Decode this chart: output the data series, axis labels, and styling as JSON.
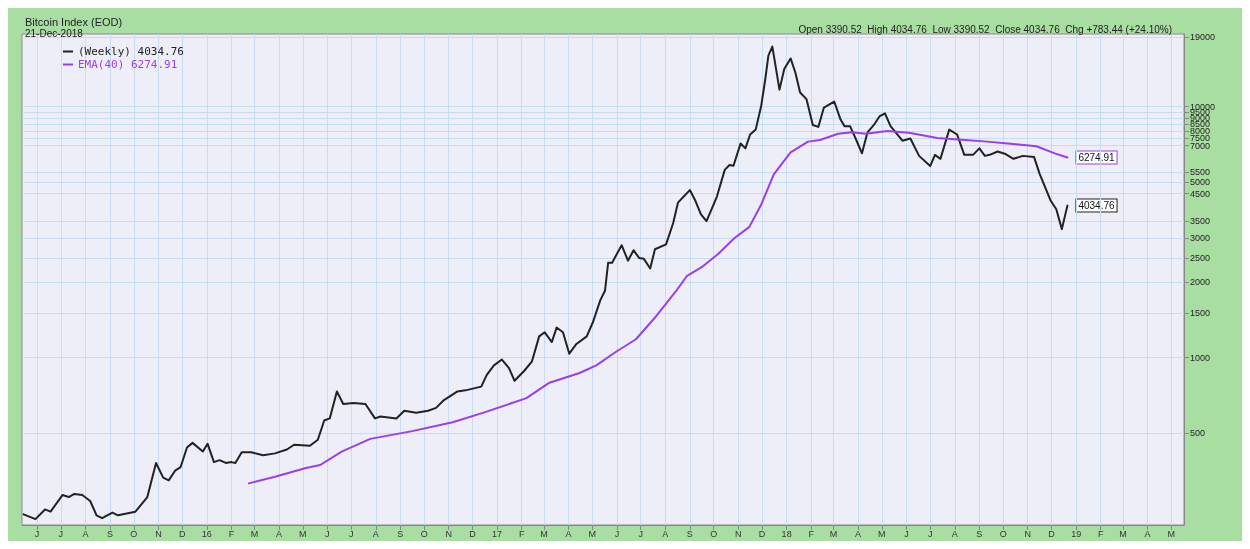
{
  "chart_data": {
    "type": "line",
    "title": "Bitcoin Index (EOD)",
    "subtitle": "21-Dec-2018",
    "annotations": [
      "Open 3390.52  High 4034.76  Low 3390.52  Close 4034.76  Chg +783.44 (+24.10%)",
      {
        "text": "6274.91",
        "x": "2018-12-21",
        "y": 6274.91
      },
      {
        "text": "4034.76",
        "x": "2018-12-21",
        "y": 4034.76
      }
    ],
    "series": [
      {
        "name": "(Weekly) 4034.76",
        "color": "#222222",
        "x": [
          "2015-05-15",
          "2015-05-30",
          "2015-06-11",
          "2015-06-18",
          "2015-07-03",
          "2015-07-11",
          "2015-07-18",
          "2015-07-28",
          "2015-08-07",
          "2015-08-15",
          "2015-08-22",
          "2015-09-04",
          "2015-09-11",
          "2015-10-03",
          "2015-10-18",
          "2015-10-29",
          "2015-11-07",
          "2015-11-14",
          "2015-11-22",
          "2015-11-29",
          "2015-12-07",
          "2015-12-14",
          "2015-12-27",
          "2016-01-02",
          "2016-01-10",
          "2016-01-17",
          "2016-01-25",
          "2016-02-01",
          "2016-02-06",
          "2016-02-14",
          "2016-02-26",
          "2016-03-12",
          "2016-03-27",
          "2016-04-11",
          "2016-04-20",
          "2016-05-10",
          "2016-05-20",
          "2016-05-28",
          "2016-06-04",
          "2016-06-13",
          "2016-06-21",
          "2016-07-04",
          "2016-07-19",
          "2016-07-31",
          "2016-08-07",
          "2016-08-27",
          "2016-09-06",
          "2016-09-21",
          "2016-10-06",
          "2016-10-16",
          "2016-10-26",
          "2016-11-12",
          "2016-11-22",
          "2016-12-12",
          "2016-12-19",
          "2016-12-28",
          "2017-01-07",
          "2017-01-16",
          "2017-01-23",
          "2017-02-04",
          "2017-02-14",
          "2017-02-23",
          "2017-03-02",
          "2017-03-11",
          "2017-03-17",
          "2017-03-25",
          "2017-04-02",
          "2017-04-11",
          "2017-04-24",
          "2017-05-02",
          "2017-05-11",
          "2017-05-17",
          "2017-05-21",
          "2017-05-26",
          "2017-06-07",
          "2017-06-15",
          "2017-06-22",
          "2017-06-29",
          "2017-07-05",
          "2017-07-13",
          "2017-07-19",
          "2017-08-02",
          "2017-08-11",
          "2017-08-17",
          "2017-08-24",
          "2017-09-01",
          "2017-09-08",
          "2017-09-15",
          "2017-09-22",
          "2017-10-05",
          "2017-10-15",
          "2017-10-21",
          "2017-10-26",
          "2017-11-04",
          "2017-11-10",
          "2017-11-16",
          "2017-11-23",
          "2017-11-30",
          "2017-12-05",
          "2017-12-09",
          "2017-12-14",
          "2017-12-23",
          "2017-12-29",
          "2018-01-06",
          "2018-01-12",
          "2018-01-18",
          "2018-01-26",
          "2018-02-03",
          "2018-02-10",
          "2018-02-17",
          "2018-02-23",
          "2018-03-02",
          "2018-03-10",
          "2018-03-15",
          "2018-03-22",
          "2018-03-29",
          "2018-04-06",
          "2018-04-13",
          "2018-04-21",
          "2018-04-28",
          "2018-05-05",
          "2018-05-12",
          "2018-05-20",
          "2018-05-27",
          "2018-06-06",
          "2018-06-17",
          "2018-07-01",
          "2018-07-07",
          "2018-07-14",
          "2018-07-25",
          "2018-08-04",
          "2018-08-13",
          "2018-08-24",
          "2018-09-01",
          "2018-09-08",
          "2018-09-14",
          "2018-09-24",
          "2018-10-03",
          "2018-10-14",
          "2018-10-26",
          "2018-11-09",
          "2018-11-16",
          "2018-11-30",
          "2018-12-07",
          "2018-12-14",
          "2018-12-21"
        ],
        "values": [
          237,
          227,
          248,
          243,
          283,
          278,
          286,
          283,
          268,
          235,
          229,
          241,
          235,
          243,
          278,
          380,
          332,
          324,
          354,
          366,
          438,
          457,
          422,
          453,
          383,
          390,
          380,
          383,
          380,
          419,
          419,
          408,
          415,
          430,
          449,
          445,
          470,
          561,
          572,
          733,
          653,
          659,
          653,
          572,
          582,
          572,
          614,
          602,
          614,
          630,
          677,
          733,
          740,
          766,
          853,
          931,
          982,
          907,
          808,
          884,
          966,
          1215,
          1261,
          1153,
          1317,
          1261,
          1036,
          1133,
          1215,
          1389,
          1690,
          1846,
          2390,
          2390,
          2806,
          2434,
          2680,
          2496,
          2475,
          2266,
          2703,
          2828,
          3438,
          4146,
          4375,
          4654,
          4218,
          3726,
          3501,
          4375,
          5601,
          5858,
          5814,
          7141,
          6827,
          7750,
          8106,
          10100,
          12810,
          16000,
          17360,
          11700,
          14150,
          15580,
          13700,
          11400,
          10730,
          8460,
          8310,
          9930,
          10170,
          10490,
          8890,
          8370,
          8370,
          7470,
          6520,
          7910,
          8460,
          9150,
          9410,
          8370,
          7800,
          7320,
          7470,
          6370,
          5800,
          6430,
          6200,
          8106,
          7750,
          6430,
          6430,
          6827,
          6370,
          6430,
          6630,
          6500,
          6200,
          6370,
          6300,
          5400,
          4218,
          3900,
          3251.32,
          4034.76
        ]
      },
      {
        "name": "EMA(40) 6274.91",
        "color": "#9b3ee8",
        "x": [
          "2016-02-23",
          "2016-03-27",
          "2016-05-05",
          "2016-05-23",
          "2016-06-19",
          "2016-07-25",
          "2016-09-16",
          "2016-11-06",
          "2016-12-14",
          "2017-02-07",
          "2017-03-08",
          "2017-04-15",
          "2017-05-06",
          "2017-05-31",
          "2017-06-25",
          "2017-07-20",
          "2017-08-14",
          "2017-08-28",
          "2017-09-17",
          "2017-10-07",
          "2017-10-27",
          "2017-11-15",
          "2017-11-30",
          "2017-12-16",
          "2018-01-06",
          "2018-01-28",
          "2018-02-12",
          "2018-03-07",
          "2018-03-24",
          "2018-04-11",
          "2018-05-08",
          "2018-06-04",
          "2018-07-10",
          "2018-08-14",
          "2018-09-11",
          "2018-10-07",
          "2018-11-12",
          "2018-12-05",
          "2018-12-21"
        ],
        "values": [
          315,
          335,
          363,
          373,
          422,
          474,
          509,
          552,
          602,
          689,
          794,
          868,
          931,
          1055,
          1183,
          1455,
          1830,
          2110,
          2306,
          2592,
          2992,
          3320,
          4077,
          5383,
          6580,
          7260,
          7370,
          7800,
          7910,
          7800,
          8010,
          7870,
          7510,
          7370,
          7260,
          7141,
          6960,
          6520,
          6274.91
        ]
      }
    ],
    "xlim": [
      "2015-05-13",
      "2019-05-17"
    ],
    "xticks": [
      {
        "value": "2015-06-01",
        "label": "J"
      },
      {
        "value": "2015-07-01",
        "label": "J"
      },
      {
        "value": "2015-08-01",
        "label": "A"
      },
      {
        "value": "2015-09-01",
        "label": "S"
      },
      {
        "value": "2015-10-01",
        "label": "O"
      },
      {
        "value": "2015-11-01",
        "label": "N"
      },
      {
        "value": "2015-12-01",
        "label": "D"
      },
      {
        "value": "2016-01-01",
        "label": "16"
      },
      {
        "value": "2016-02-01",
        "label": "F"
      },
      {
        "value": "2016-03-01",
        "label": "M"
      },
      {
        "value": "2016-04-01",
        "label": "A"
      },
      {
        "value": "2016-05-01",
        "label": "M"
      },
      {
        "value": "2016-06-01",
        "label": "J"
      },
      {
        "value": "2016-07-01",
        "label": "J"
      },
      {
        "value": "2016-08-01",
        "label": "A"
      },
      {
        "value": "2016-09-01",
        "label": "S"
      },
      {
        "value": "2016-10-01",
        "label": "O"
      },
      {
        "value": "2016-11-01",
        "label": "N"
      },
      {
        "value": "2016-12-01",
        "label": "D"
      },
      {
        "value": "2017-01-01",
        "label": "17"
      },
      {
        "value": "2017-02-01",
        "label": "F"
      },
      {
        "value": "2017-03-01",
        "label": "M"
      },
      {
        "value": "2017-04-01",
        "label": "A"
      },
      {
        "value": "2017-05-01",
        "label": "M"
      },
      {
        "value": "2017-06-01",
        "label": "J"
      },
      {
        "value": "2017-07-01",
        "label": "J"
      },
      {
        "value": "2017-08-01",
        "label": "A"
      },
      {
        "value": "2017-09-01",
        "label": "S"
      },
      {
        "value": "2017-10-01",
        "label": "O"
      },
      {
        "value": "2017-11-01",
        "label": "N"
      },
      {
        "value": "2017-12-01",
        "label": "D"
      },
      {
        "value": "2018-01-01",
        "label": "18"
      },
      {
        "value": "2018-02-01",
        "label": "F"
      },
      {
        "value": "2018-03-01",
        "label": "M"
      },
      {
        "value": "2018-04-01",
        "label": "A"
      },
      {
        "value": "2018-05-01",
        "label": "M"
      },
      {
        "value": "2018-06-01",
        "label": "J"
      },
      {
        "value": "2018-07-01",
        "label": "J"
      },
      {
        "value": "2018-08-01",
        "label": "A"
      },
      {
        "value": "2018-09-01",
        "label": "S"
      },
      {
        "value": "2018-10-01",
        "label": "O"
      },
      {
        "value": "2018-11-01",
        "label": "N"
      },
      {
        "value": "2018-12-01",
        "label": "D"
      },
      {
        "value": "2019-01-01",
        "label": "19"
      },
      {
        "value": "2019-02-01",
        "label": "F"
      },
      {
        "value": "2019-03-01",
        "label": "M"
      },
      {
        "value": "2019-04-01",
        "label": "A"
      },
      {
        "value": "2019-05-01",
        "label": "M"
      }
    ],
    "ylim": [
      215,
      19500
    ],
    "yticks": [
      500,
      1000,
      1500,
      2000,
      2500,
      3000,
      3500,
      4500,
      5000,
      5500,
      7000,
      7500,
      8000,
      8500,
      9000,
      9500,
      10000,
      19000
    ],
    "log": "y",
    "grid": true,
    "legend": "top left",
    "marker": "none",
    "line_style": "solid"
  }
}
